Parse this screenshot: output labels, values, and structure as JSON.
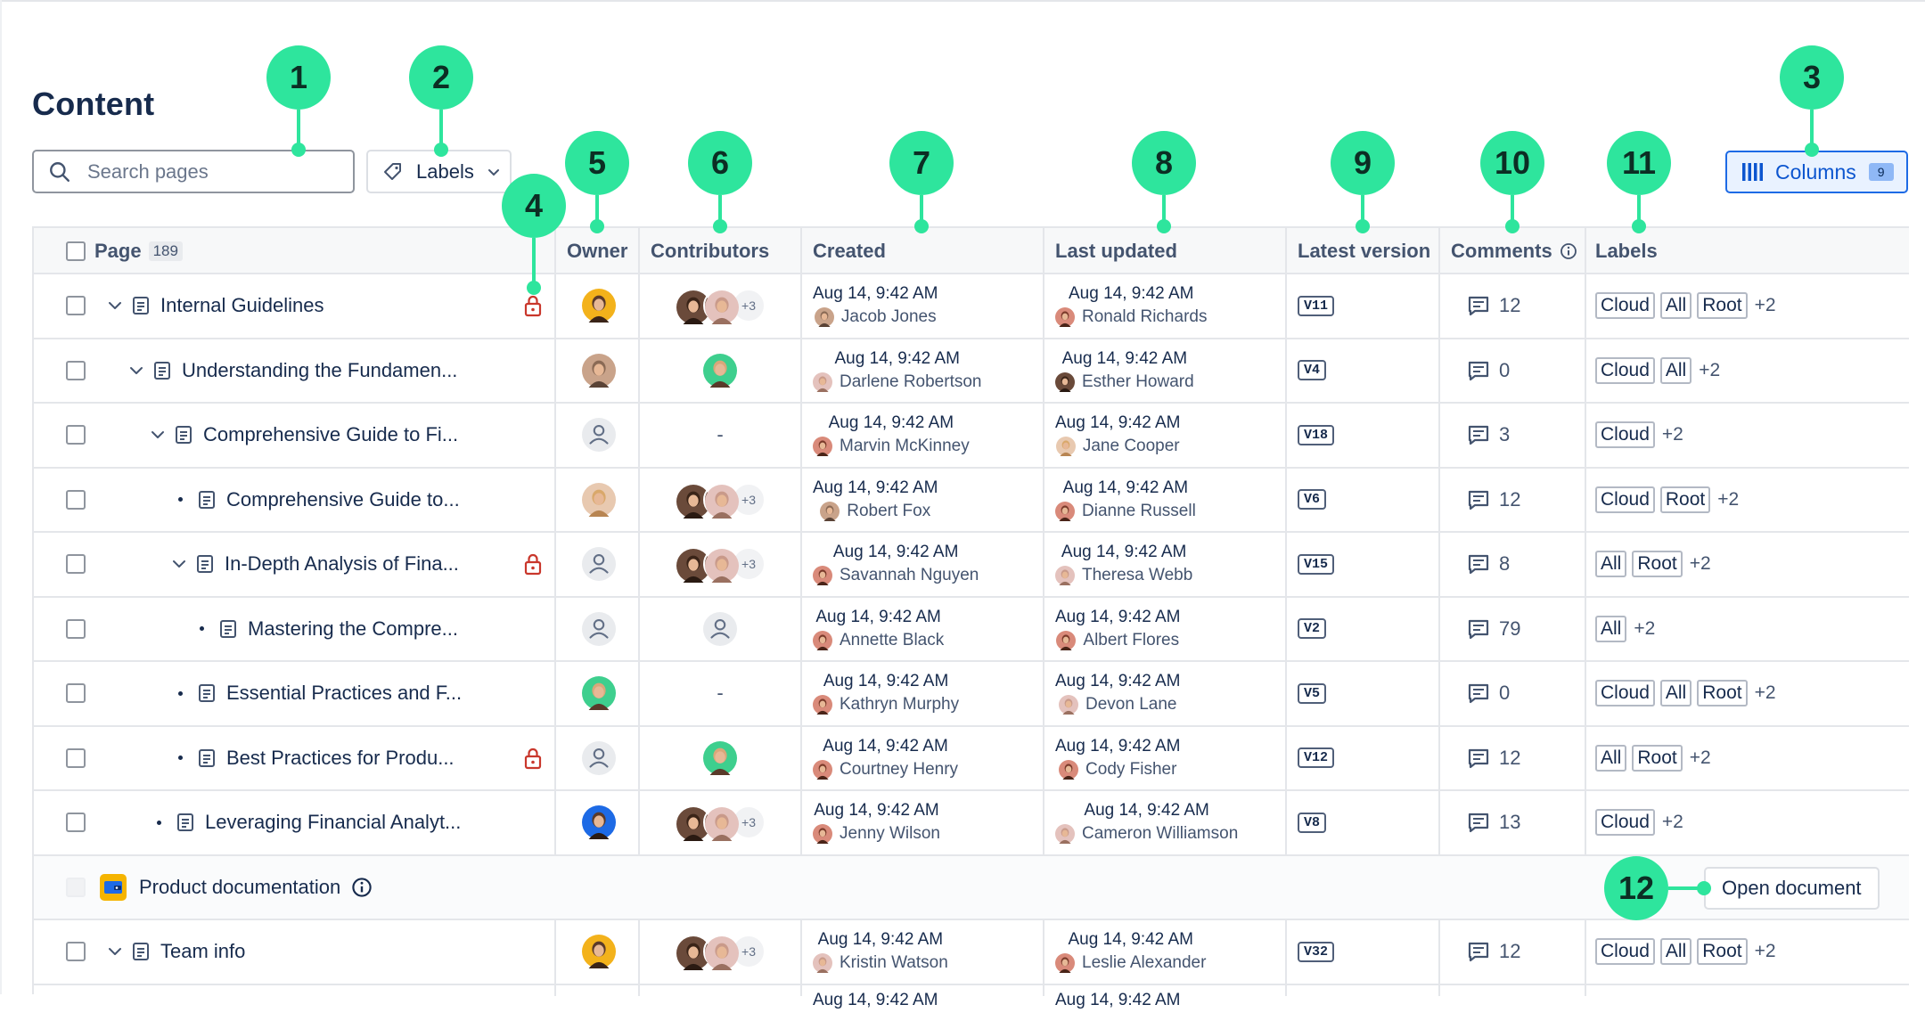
{
  "title": "Content",
  "search": {
    "placeholder": "Search pages"
  },
  "labels_filter": {
    "label": "Labels"
  },
  "columns_button": {
    "label": "Columns",
    "count": "9"
  },
  "columns": {
    "page": "Page",
    "page_count": "189",
    "owner": "Owner",
    "contributors": "Contributors",
    "created": "Created",
    "last_updated": "Last updated",
    "latest_version": "Latest version",
    "comments": "Comments",
    "labels": "Labels"
  },
  "rows": [
    {
      "title": "Internal Guidelines",
      "expand": "chevron-down",
      "locked": true,
      "owner": "photo-yellow",
      "contributors": "stack",
      "created_date": "Aug 14, 9:42 AM",
      "created_by": "Jacob Jones",
      "updated_date": "Aug 14, 9:42 AM",
      "updated_by": "Ronald Richards",
      "version": "V11",
      "comments": "12",
      "labels": [
        "Cloud",
        "All",
        "Root"
      ],
      "labels_more": "+2"
    },
    {
      "title": "Understanding the Fundamen...",
      "expand": "chevron-down",
      "locked": false,
      "owner": "photo-man",
      "contributors": "single-green",
      "created_date": "Aug 14, 9:42 AM",
      "created_by": "Darlene Robertson",
      "updated_date": "Aug 14, 9:42 AM",
      "updated_by": "Esther Howard",
      "version": "V4",
      "comments": "0",
      "labels": [
        "Cloud",
        "All"
      ],
      "labels_more": "+2"
    },
    {
      "title": "Comprehensive Guide to Fi...",
      "expand": "chevron-down",
      "locked": false,
      "owner": "placeholder",
      "contributors": "none",
      "contributors_text": "-",
      "created_date": "Aug 14, 9:42 AM",
      "created_by": "Marvin McKinney",
      "updated_date": "Aug 14, 9:42 AM",
      "updated_by": "Jane Cooper",
      "version": "V18",
      "comments": "3",
      "labels": [
        "Cloud"
      ],
      "labels_more": "+2"
    },
    {
      "title": "Comprehensive Guide to...",
      "expand": "bullet",
      "locked": false,
      "owner": "photo-blonde",
      "contributors": "stack",
      "created_date": "Aug 14, 9:42 AM",
      "created_by": "Robert Fox",
      "updated_date": "Aug 14, 9:42 AM",
      "updated_by": "Dianne Russell",
      "version": "V6",
      "comments": "12",
      "labels": [
        "Cloud",
        "Root"
      ],
      "labels_more": "+2"
    },
    {
      "title": "In-Depth Analysis of Fina...",
      "expand": "chevron-down",
      "locked": true,
      "owner": "placeholder",
      "contributors": "stack",
      "created_date": "Aug 14, 9:42 AM",
      "created_by": "Savannah Nguyen",
      "updated_date": "Aug 14, 9:42 AM",
      "updated_by": "Theresa Webb",
      "version": "V15",
      "comments": "8",
      "labels": [
        "All",
        "Root"
      ],
      "labels_more": "+2"
    },
    {
      "title": "Mastering the Compre...",
      "expand": "bullet",
      "locked": false,
      "owner": "placeholder",
      "contributors": "single-placeholder",
      "created_date": "Aug 14, 9:42 AM",
      "created_by": "Annette Black",
      "updated_date": "Aug 14, 9:42 AM",
      "updated_by": "Albert Flores",
      "version": "V2",
      "comments": "79",
      "labels": [
        "All"
      ],
      "labels_more": "+2"
    },
    {
      "title": "Essential Practices and F...",
      "expand": "bullet",
      "locked": false,
      "owner": "green-avatar",
      "contributors": "none",
      "contributors_text": "-",
      "created_date": "Aug 14, 9:42 AM",
      "created_by": "Kathryn Murphy",
      "updated_date": "Aug 14, 9:42 AM",
      "updated_by": "Devon Lane",
      "version": "V5",
      "comments": "0",
      "labels": [
        "Cloud",
        "All",
        "Root"
      ],
      "labels_more": "+2"
    },
    {
      "title": "Best Practices for Produ...",
      "expand": "bullet",
      "locked": true,
      "owner": "placeholder",
      "contributors": "single-green",
      "created_date": "Aug 14, 9:42 AM",
      "created_by": "Courtney Henry",
      "updated_date": "Aug 14, 9:42 AM",
      "updated_by": "Cody Fisher",
      "version": "V12",
      "comments": "12",
      "labels": [
        "All",
        "Root"
      ],
      "labels_more": "+2"
    },
    {
      "title": "Leveraging Financial Analyt...",
      "expand": "bullet",
      "locked": false,
      "owner": "blue-avatar",
      "contributors": "stack",
      "created_date": "Aug 14, 9:42 AM",
      "created_by": "Jenny Wilson",
      "updated_date": "Aug 14, 9:42 AM",
      "updated_by": "Cameron Williamson",
      "version": "V8",
      "comments": "13",
      "labels": [
        "Cloud"
      ],
      "labels_more": "+2"
    }
  ],
  "space_row": {
    "title": "Product documentation",
    "action": "Open document"
  },
  "team_row": {
    "title": "Team info",
    "created_date": "Aug 14, 9:42 AM",
    "created_by": "Kristin Watson",
    "updated_date": "Aug 14, 9:42 AM",
    "updated_by": "Leslie Alexander",
    "version": "V32",
    "comments": "12",
    "labels": [
      "Cloud",
      "All",
      "Root"
    ],
    "labels_more": "+2"
  },
  "partial_row": {
    "created_date": "Aug 14, 9:42 AM",
    "updated_date": "Aug 14, 9:42 AM"
  },
  "contributors_more": "+3",
  "callouts": [
    "1",
    "2",
    "3",
    "4",
    "5",
    "6",
    "7",
    "8",
    "9",
    "10",
    "11",
    "12"
  ],
  "colors": {
    "callout": "#2ee59d",
    "accent": "#1d6ae5",
    "lock": "#c9372c",
    "text": "#172b4d"
  }
}
